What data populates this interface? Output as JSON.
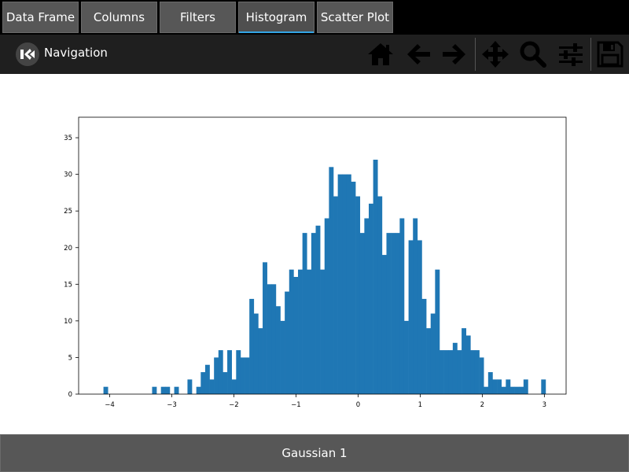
{
  "tabs": [
    {
      "label": "Data Frame",
      "active": false
    },
    {
      "label": "Columns",
      "active": false
    },
    {
      "label": "Filters",
      "active": false
    },
    {
      "label": "Histogram",
      "active": true
    },
    {
      "label": "Scatter Plot",
      "active": false
    }
  ],
  "navigation": {
    "title": "Navigation",
    "tools": [
      "home-icon",
      "back-arrow-icon",
      "forward-arrow-icon",
      "pan-move-icon",
      "zoom-magnifier-icon",
      "configure-subplots-icon",
      "save-floppy-icon"
    ]
  },
  "footer": {
    "label": "Gaussian 1"
  },
  "colors": {
    "bar": "#1f77b4",
    "tab_bg": "#575757",
    "tab_accent": "#33a5e5",
    "nav_bg": "#1f1f1f"
  },
  "chart_data": {
    "type": "bar",
    "x_ticks": [
      -4,
      -3,
      -2,
      -1,
      0,
      1,
      2,
      3
    ],
    "y_ticks": [
      0,
      5,
      10,
      15,
      20,
      25,
      30,
      35
    ],
    "xlim": [
      -4.5,
      3.35
    ],
    "ylim": [
      0,
      37.8
    ],
    "bin_start": -4.1,
    "bin_width": 0.0712,
    "counts": [
      1,
      0,
      0,
      0,
      0,
      0,
      0,
      0,
      0,
      0,
      0,
      1,
      0,
      1,
      1,
      0,
      1,
      0,
      0,
      2,
      0,
      1,
      3,
      4,
      2,
      5,
      6,
      3,
      6,
      2,
      6,
      5,
      5,
      13,
      11,
      9,
      18,
      15,
      15,
      12,
      10,
      14,
      17,
      16,
      17,
      22,
      17,
      22,
      23,
      17,
      24,
      31,
      27,
      30,
      30,
      30,
      29,
      27,
      22,
      24,
      26,
      32,
      27,
      19,
      22,
      22,
      22,
      24,
      10,
      21,
      24,
      21,
      13,
      9,
      11,
      17,
      6,
      6,
      6,
      7,
      6,
      9,
      8,
      6,
      6,
      5,
      1,
      3,
      2,
      2,
      1,
      2,
      1,
      1,
      1,
      2,
      0,
      0,
      0,
      2
    ]
  }
}
